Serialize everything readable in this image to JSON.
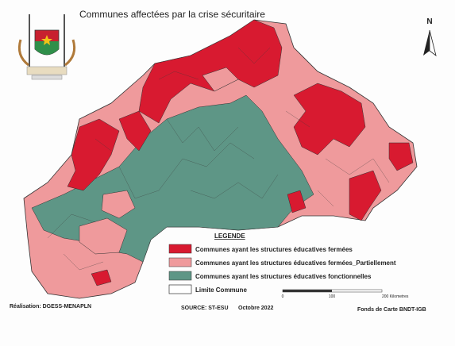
{
  "title": "Communes affectées par la crise sécuritaire",
  "north": "N",
  "legend": {
    "title": "LEGENDE",
    "items": [
      "Communes ayant les structures éducatives fermées",
      "Communes ayant les structures éducatives fermées_Partiellement",
      "Communes ayant les structures éducatives fonctionnelles",
      "Limite Commune"
    ]
  },
  "scale": [
    "0",
    "100",
    "200 Kilometres"
  ],
  "footer": {
    "credit": "Réalisation: DGESS-MENAPLN",
    "source": "SOURCE: ST-ESU",
    "date": "Octobre 2022",
    "basemap": "Fonds de Carte BNDT-IGB"
  }
}
